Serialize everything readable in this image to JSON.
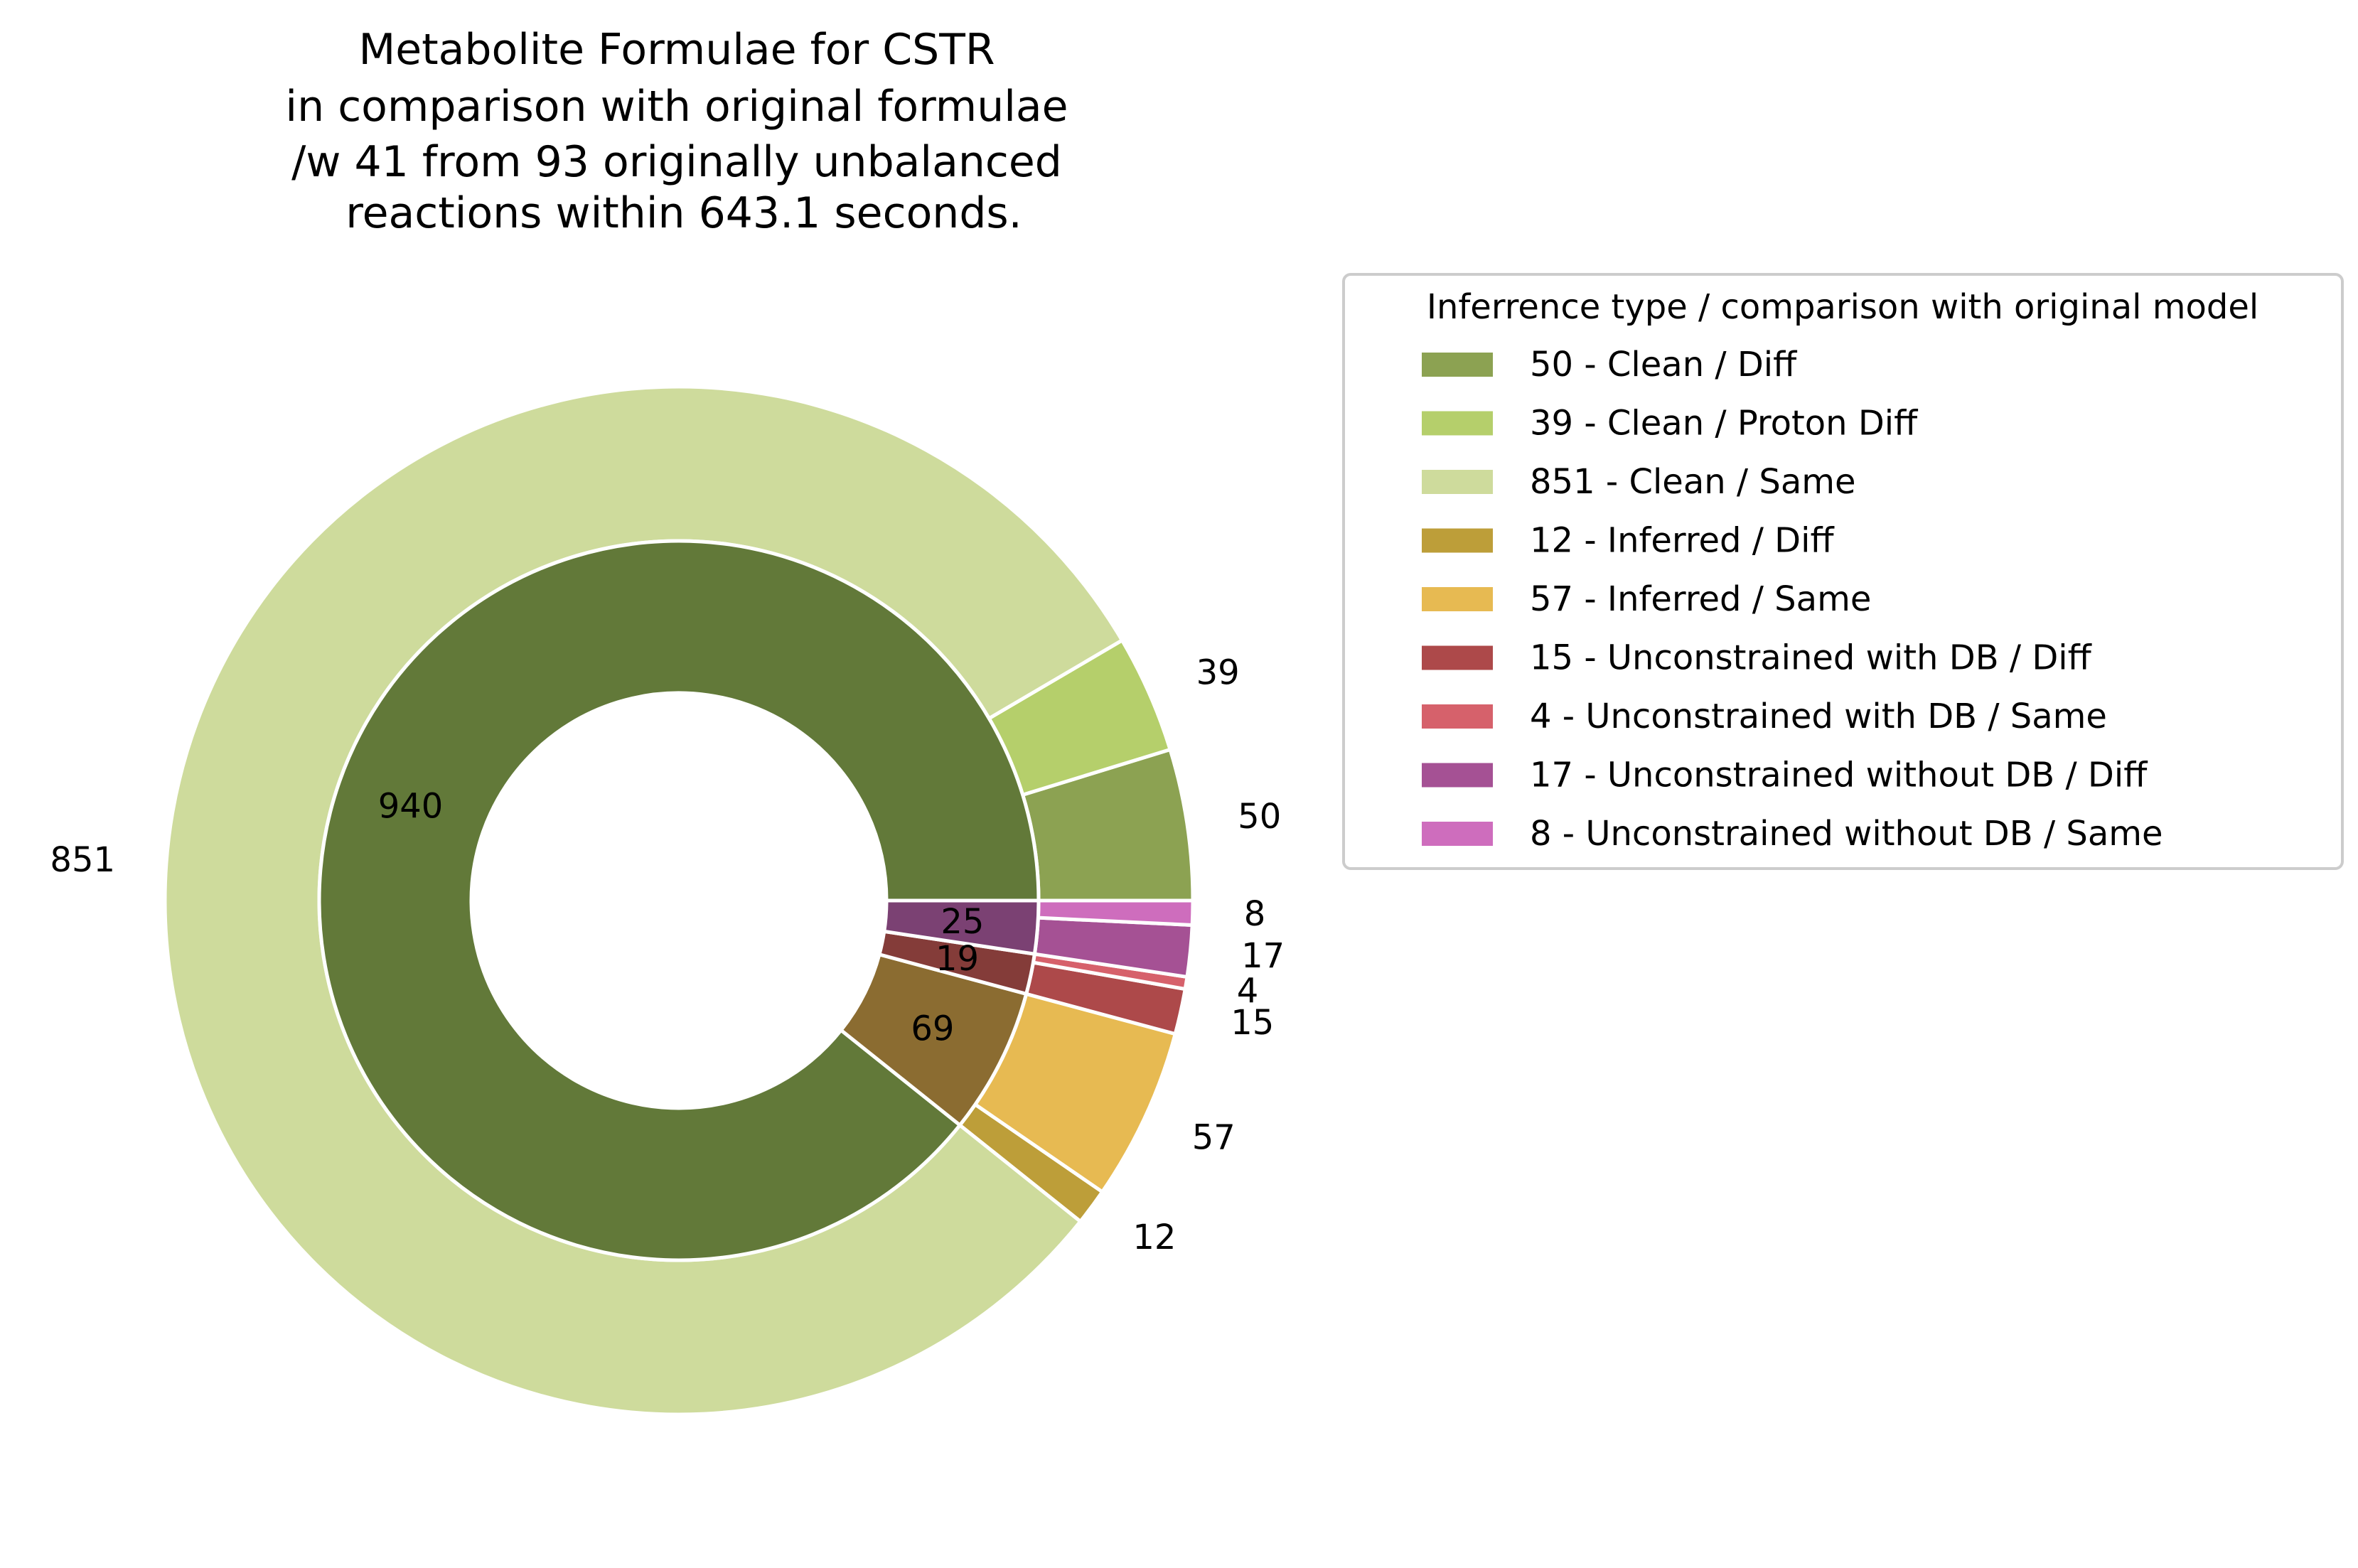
{
  "chart_data": {
    "type": "pie",
    "variant": "nested-donut",
    "title_lines": [
      "Metabolite Formulae for CSTR",
      "in comparison with original formulae",
      "/w 41 from 93 originally unbalanced",
      "reactions within 643.1 seconds."
    ],
    "legend": {
      "title": "Inferrence type / comparison with original model",
      "placement": "right"
    },
    "inner_ring": [
      {
        "label": "940",
        "value": 940,
        "color": "#627939"
      },
      {
        "label": "69",
        "value": 69,
        "color": "#8b6c31"
      },
      {
        "label": "19",
        "value": 19,
        "color": "#843c39"
      },
      {
        "label": "25",
        "value": 25,
        "color": "#7b4173"
      }
    ],
    "outer_ring": [
      {
        "label": "50",
        "value": 50,
        "color": "#8ca252",
        "legend": "50 - Clean / Diff"
      },
      {
        "label": "39",
        "value": 39,
        "color": "#b5cf6b",
        "legend": "39 - Clean / Proton Diff"
      },
      {
        "label": "851",
        "value": 851,
        "color": "#cedb9c",
        "legend": "851 - Clean / Same"
      },
      {
        "label": "12",
        "value": 12,
        "color": "#bd9e39",
        "legend": "12 - Inferred / Diff"
      },
      {
        "label": "57",
        "value": 57,
        "color": "#e7ba52",
        "legend": "57 - Inferred / Same"
      },
      {
        "label": "15",
        "value": 15,
        "color": "#ad494a",
        "legend": "15 - Unconstrained with DB / Diff"
      },
      {
        "label": "4",
        "value": 4,
        "color": "#d6616b",
        "legend": "4 - Unconstrained with DB / Same"
      },
      {
        "label": "17",
        "value": 17,
        "color": "#a55194",
        "legend": "17 - Unconstrained without DB / Diff"
      },
      {
        "label": "8",
        "value": 8,
        "color": "#ce6dbd",
        "legend": "8 - Unconstrained without DB / Same"
      }
    ],
    "start_angle_deg": 0,
    "direction": "counterclockwise"
  }
}
